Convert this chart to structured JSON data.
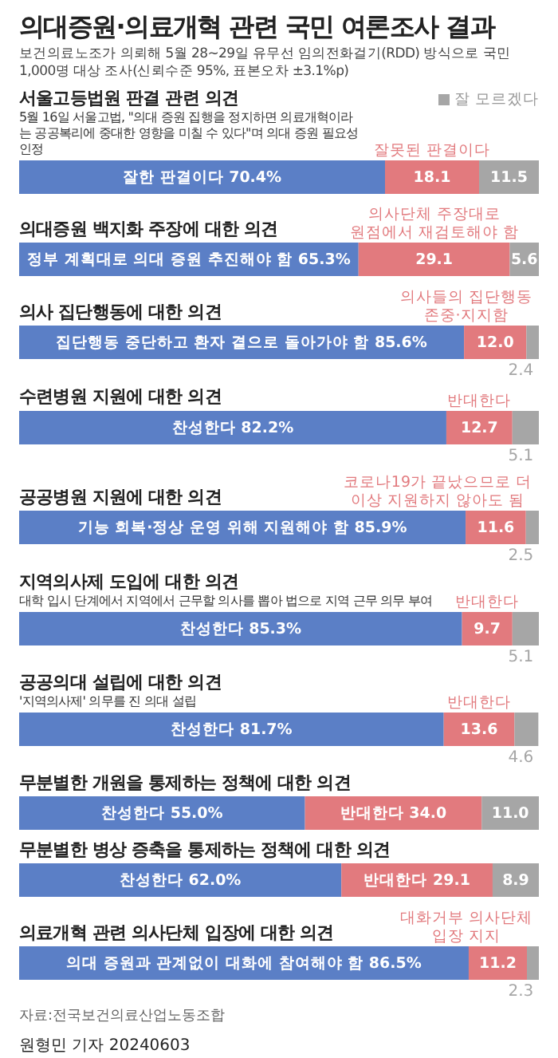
{
  "chart_data": [
    {
      "type": "other",
      "title": "의대증원·의료개혁 관련 국민 여론조사 결과",
      "subtitle": "보건의료노조가 의뢰해 5월 28~29일 유무선 임의전화걸기(RDD) 방식으로 국민 1,000명 대상 조사(신뢰수준 95%, 표본오차 ±3.1%p)"
    },
    {
      "type": "bar",
      "orientation": "horizontal",
      "stacked": true,
      "title": "서울고등법원 판결 관련 의견",
      "subtitle": "5월 16일 서울고법, \"의대 증원 집행을 정지하면 의료개혁이라는 공공복리에 중대한 영향을 미칠 수 있다\"며 의대 증원 필요성 인정",
      "categories": [
        null
      ],
      "xlim": [
        0,
        100
      ],
      "tick_labels": false,
      "legend": "top right",
      "series": [
        {
          "name": "잘한 판결이다",
          "color": "#5b7fc6",
          "values": [
            70.4
          ],
          "value_labels": [
            "70.4%"
          ]
        },
        {
          "name": "잘못된 판결이다",
          "color": "#e27a7e",
          "values": [
            18.1
          ],
          "value_labels": [
            "18.1"
          ]
        },
        {
          "name": "잘 모르겠다",
          "color": "#a6a6a6",
          "values": [
            11.5
          ],
          "value_labels": [
            "11.5"
          ]
        }
      ]
    },
    {
      "type": "bar",
      "orientation": "horizontal",
      "stacked": true,
      "title": "의대증원 백지화 주장에 대한 의견",
      "categories": [
        null
      ],
      "xlim": [
        0,
        100
      ],
      "tick_labels": false,
      "series": [
        {
          "name": "정부 계획대로 의대 증원 추진해야 함",
          "color": "#5b7fc6",
          "values": [
            65.3
          ],
          "value_labels": [
            "65.3%"
          ]
        },
        {
          "name": "의사단체 주장대로 원점에서 재검토해야 함",
          "color": "#e27a7e",
          "values": [
            29.1
          ],
          "value_labels": [
            "29.1"
          ]
        },
        {
          "color": "#a6a6a6",
          "values": [
            5.6
          ],
          "value_labels": [
            "5.6"
          ]
        }
      ]
    },
    {
      "type": "bar",
      "orientation": "horizontal",
      "stacked": true,
      "title": "의사 집단행동에 대한 의견",
      "categories": [
        null
      ],
      "xlim": [
        0,
        100
      ],
      "tick_labels": false,
      "series": [
        {
          "name": "집단행동 중단하고 환자 곁으로 돌아가야 함",
          "color": "#5b7fc6",
          "values": [
            85.6
          ],
          "value_labels": [
            "85.6%"
          ]
        },
        {
          "name": "의사들의 집단행동 존중·지지함",
          "color": "#e27a7e",
          "values": [
            12.0
          ],
          "value_labels": [
            "12.0"
          ]
        },
        {
          "color": "#a6a6a6",
          "values": [
            2.4
          ],
          "value_labels": [
            "2.4"
          ]
        }
      ]
    },
    {
      "type": "bar",
      "orientation": "horizontal",
      "stacked": true,
      "title": "수련병원 지원에 대한 의견",
      "categories": [
        null
      ],
      "xlim": [
        0,
        100
      ],
      "tick_labels": false,
      "series": [
        {
          "name": "찬성한다",
          "color": "#5b7fc6",
          "values": [
            82.2
          ],
          "value_labels": [
            "82.2%"
          ]
        },
        {
          "name": "반대한다",
          "color": "#e27a7e",
          "values": [
            12.7
          ],
          "value_labels": [
            "12.7"
          ]
        },
        {
          "color": "#a6a6a6",
          "values": [
            5.1
          ],
          "value_labels": [
            "5.1"
          ]
        }
      ]
    },
    {
      "type": "bar",
      "orientation": "horizontal",
      "stacked": true,
      "title": "공공병원 지원에 대한 의견",
      "categories": [
        null
      ],
      "xlim": [
        0,
        100
      ],
      "tick_labels": false,
      "series": [
        {
          "name": "기능 회복·정상 운영 위해 지원해야 함",
          "color": "#5b7fc6",
          "values": [
            85.9
          ],
          "value_labels": [
            "85.9%"
          ]
        },
        {
          "name": "코로나19가 끝났으므로 더 이상 지원하지 않아도 됨",
          "color": "#e27a7e",
          "values": [
            11.6
          ],
          "value_labels": [
            "11.6"
          ]
        },
        {
          "color": "#a6a6a6",
          "values": [
            2.5
          ],
          "value_labels": [
            "2.5"
          ]
        }
      ]
    },
    {
      "type": "bar",
      "orientation": "horizontal",
      "stacked": true,
      "title": "지역의사제 도입에 대한 의견",
      "subtitle": "대학 입시 단계에서 지역에서 근무할 의사를 뽑아 법으로 지역 근무 의무 부여",
      "categories": [
        null
      ],
      "xlim": [
        0,
        100.1
      ],
      "tick_labels": false,
      "series": [
        {
          "name": "찬성한다",
          "color": "#5b7fc6",
          "values": [
            85.3
          ],
          "value_labels": [
            "85.3%"
          ]
        },
        {
          "name": "반대한다",
          "color": "#e27a7e",
          "values": [
            9.7
          ],
          "value_labels": [
            "9.7"
          ]
        },
        {
          "color": "#a6a6a6",
          "values": [
            5.1
          ],
          "value_labels": [
            "5.1"
          ]
        }
      ]
    },
    {
      "type": "bar",
      "orientation": "horizontal",
      "stacked": true,
      "title": "공공의대 설립에 대한 의견",
      "subtitle": "'지역의사제' 의무를 진 의대 설립",
      "categories": [
        null
      ],
      "xlim": [
        0,
        100
      ],
      "tick_labels": false,
      "series": [
        {
          "name": "찬성한다",
          "color": "#5b7fc6",
          "values": [
            81.7
          ],
          "value_labels": [
            "81.7%"
          ]
        },
        {
          "name": "반대한다",
          "color": "#e27a7e",
          "values": [
            13.6
          ],
          "value_labels": [
            "13.6"
          ]
        },
        {
          "color": "#a6a6a6",
          "values": [
            4.6
          ],
          "value_labels": [
            "4.6"
          ]
        }
      ]
    },
    {
      "type": "bar",
      "orientation": "horizontal",
      "stacked": true,
      "title": "무분별한 개원을 통제하는 정책에 대한 의견",
      "categories": [
        null
      ],
      "xlim": [
        0,
        100
      ],
      "tick_labels": false,
      "series": [
        {
          "name": "찬성한다",
          "color": "#5b7fc6",
          "values": [
            55.0
          ],
          "value_labels": [
            "55.0%"
          ]
        },
        {
          "name": "반대한다",
          "color": "#e27a7e",
          "values": [
            34.0
          ],
          "value_labels": [
            "34.0"
          ]
        },
        {
          "color": "#a6a6a6",
          "values": [
            11.0
          ],
          "value_labels": [
            "11.0"
          ]
        }
      ]
    },
    {
      "type": "bar",
      "orientation": "horizontal",
      "stacked": true,
      "title": "무분별한 병상 증축을 통제하는 정책에 대한 의견",
      "categories": [
        null
      ],
      "xlim": [
        0,
        100
      ],
      "tick_labels": false,
      "series": [
        {
          "name": "찬성한다",
          "color": "#5b7fc6",
          "values": [
            62.0
          ],
          "value_labels": [
            "62.0%"
          ]
        },
        {
          "name": "반대한다",
          "color": "#e27a7e",
          "values": [
            29.1
          ],
          "value_labels": [
            "29.1"
          ]
        },
        {
          "color": "#a6a6a6",
          "values": [
            8.9
          ],
          "value_labels": [
            "8.9"
          ]
        }
      ]
    },
    {
      "type": "bar",
      "orientation": "horizontal",
      "stacked": true,
      "title": "의료개혁 관련 의사단체 입장에 대한 의견",
      "categories": [
        null
      ],
      "xlim": [
        0,
        100
      ],
      "tick_labels": false,
      "series": [
        {
          "name": "의대 증원과 관계없이 대화에 참여해야 함",
          "color": "#5b7fc6",
          "values": [
            86.5
          ],
          "value_labels": [
            "86.5%"
          ]
        },
        {
          "name": "대화거부 의사단체 입장 지지",
          "color": "#e27a7e",
          "values": [
            11.2
          ],
          "value_labels": [
            "11.2"
          ]
        },
        {
          "color": "#a6a6a6",
          "values": [
            2.3
          ],
          "value_labels": [
            "2.3"
          ]
        }
      ]
    },
    {
      "type": "other",
      "annotations": [
        "자료:전국보건의료산업노동조합",
        "원형민 기자 20240603"
      ]
    }
  ]
}
